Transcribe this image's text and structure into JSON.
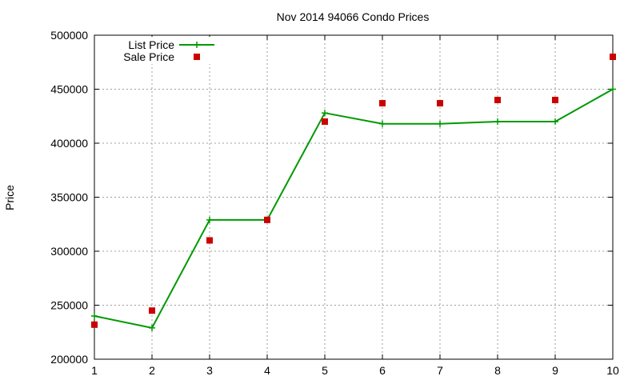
{
  "chart_data": {
    "type": "line",
    "title": "Nov 2014 94066 Condo Prices",
    "xlabel": "",
    "ylabel": "Price",
    "x": [
      1,
      2,
      3,
      4,
      5,
      6,
      7,
      8,
      9,
      10
    ],
    "xlim": [
      1,
      10
    ],
    "ylim": [
      200000,
      500000
    ],
    "xticks": [
      "1",
      "2",
      "3",
      "4",
      "5",
      "6",
      "7",
      "8",
      "9",
      "10"
    ],
    "yticks": [
      "200000",
      "250000",
      "300000",
      "350000",
      "400000",
      "450000",
      "500000"
    ],
    "grid": true,
    "legend_position": "top-left",
    "series": [
      {
        "name": "List Price",
        "style": "line-with-plus-markers",
        "color": "#009900",
        "values": [
          240000,
          229000,
          329000,
          329000,
          428000,
          418000,
          418000,
          420000,
          420000,
          450000
        ]
      },
      {
        "name": "Sale Price",
        "style": "square-markers",
        "color": "#cc0000",
        "values": [
          232000,
          245000,
          310000,
          329000,
          420000,
          437000,
          437000,
          440000,
          440000,
          480000
        ]
      }
    ]
  }
}
